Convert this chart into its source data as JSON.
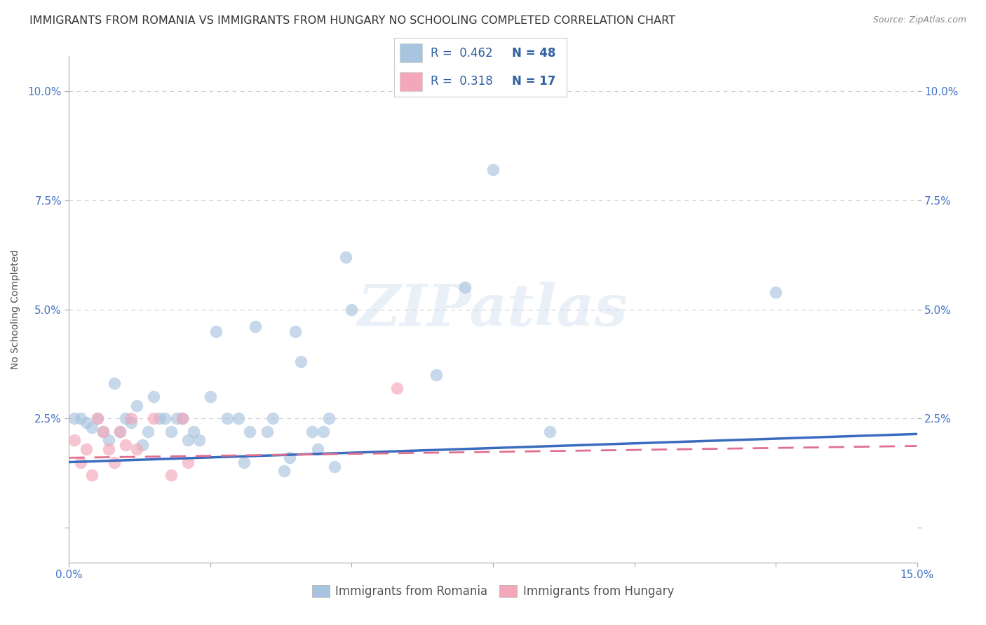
{
  "title": "IMMIGRANTS FROM ROMANIA VS IMMIGRANTS FROM HUNGARY NO SCHOOLING COMPLETED CORRELATION CHART",
  "source": "Source: ZipAtlas.com",
  "ylabel_label": "No Schooling Completed",
  "xlim": [
    0.0,
    0.15
  ],
  "ylim": [
    -0.008,
    0.108
  ],
  "xtick_positions": [
    0.0,
    0.025,
    0.05,
    0.075,
    0.1,
    0.125,
    0.15
  ],
  "xtick_labels": [
    "0.0%",
    "",
    "",
    "",
    "",
    "",
    "15.0%"
  ],
  "ytick_positions": [
    0.0,
    0.025,
    0.05,
    0.075,
    0.1
  ],
  "ytick_labels_left": [
    "",
    "2.5%",
    "5.0%",
    "7.5%",
    "10.0%"
  ],
  "ytick_labels_right": [
    "",
    "2.5%",
    "5.0%",
    "7.5%",
    "10.0%"
  ],
  "romania_R": 0.462,
  "romania_N": 48,
  "hungary_R": 0.318,
  "hungary_N": 17,
  "romania_color": "#a8c4e0",
  "hungary_color": "#f4a7b9",
  "romania_line_color": "#3a6bbf",
  "hungary_line_color": "#e07090",
  "watermark_text": "ZIPatlas",
  "background_color": "#ffffff",
  "grid_color": "#cccccc",
  "romania_scatter_x": [
    0.001,
    0.002,
    0.003,
    0.004,
    0.005,
    0.006,
    0.007,
    0.008,
    0.009,
    0.01,
    0.011,
    0.012,
    0.013,
    0.014,
    0.015,
    0.016,
    0.017,
    0.018,
    0.019,
    0.02,
    0.021,
    0.022,
    0.023,
    0.025,
    0.026,
    0.028,
    0.03,
    0.031,
    0.033,
    0.035,
    0.036,
    0.038,
    0.039,
    0.04,
    0.041,
    0.043,
    0.044,
    0.045,
    0.047,
    0.049,
    0.05,
    0.065,
    0.07,
    0.075,
    0.085,
    0.125,
    0.046,
    0.032
  ],
  "romania_scatter_y": [
    0.025,
    0.025,
    0.024,
    0.023,
    0.025,
    0.022,
    0.02,
    0.033,
    0.022,
    0.025,
    0.024,
    0.028,
    0.019,
    0.022,
    0.03,
    0.025,
    0.025,
    0.022,
    0.025,
    0.025,
    0.02,
    0.022,
    0.02,
    0.03,
    0.045,
    0.025,
    0.025,
    0.015,
    0.046,
    0.022,
    0.025,
    0.013,
    0.016,
    0.045,
    0.038,
    0.022,
    0.018,
    0.022,
    0.014,
    0.062,
    0.05,
    0.035,
    0.055,
    0.082,
    0.022,
    0.054,
    0.025,
    0.022
  ],
  "hungary_scatter_x": [
    0.001,
    0.002,
    0.003,
    0.004,
    0.005,
    0.006,
    0.007,
    0.008,
    0.009,
    0.01,
    0.011,
    0.012,
    0.015,
    0.018,
    0.02,
    0.021,
    0.058
  ],
  "hungary_scatter_y": [
    0.02,
    0.015,
    0.018,
    0.012,
    0.025,
    0.022,
    0.018,
    0.015,
    0.022,
    0.019,
    0.025,
    0.018,
    0.025,
    0.012,
    0.025,
    0.015,
    0.032
  ],
  "romania_line_intercept": 0.015,
  "romania_line_slope": 0.043,
  "hungary_line_intercept": 0.016,
  "hungary_line_slope": 0.018,
  "title_fontsize": 11.5,
  "source_fontsize": 9,
  "axis_label_fontsize": 10,
  "tick_fontsize": 11,
  "legend_fontsize": 12,
  "scatter_size": 160,
  "scatter_alpha": 0.65
}
